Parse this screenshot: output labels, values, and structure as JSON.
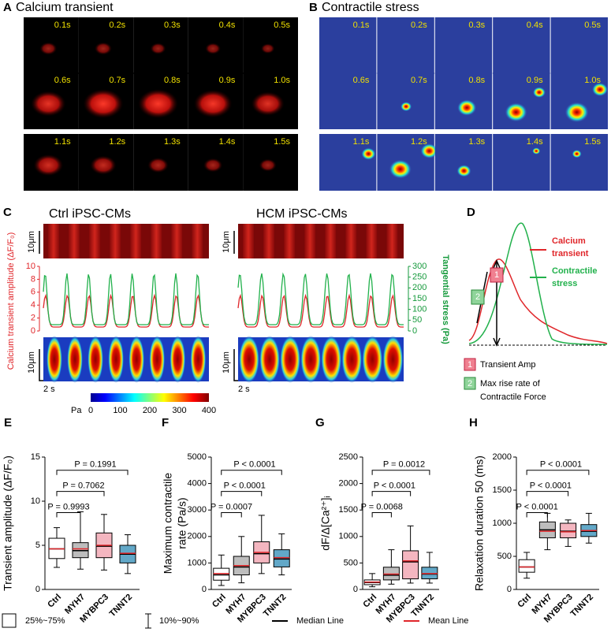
{
  "panel_a": {
    "letter": "A",
    "title": "Calcium transient",
    "times": [
      "0.1s",
      "0.2s",
      "0.3s",
      "0.4s",
      "0.5s",
      "0.6s",
      "0.7s",
      "0.8s",
      "0.9s",
      "1.0s",
      "1.1s",
      "1.2s",
      "1.3s",
      "1.4s",
      "1.5s"
    ]
  },
  "panel_b": {
    "letter": "B",
    "title": "Contractile stress",
    "times": [
      "0.1s",
      "0.2s",
      "0.3s",
      "0.4s",
      "0.5s",
      "0.6s",
      "0.7s",
      "0.8s",
      "0.9s",
      "1.0s",
      "1.1s",
      "1.2s",
      "1.3s",
      "1.4s",
      "1.5s"
    ]
  },
  "panel_c": {
    "letter": "C",
    "ctrl_title": "Ctrl iPSC-CMs",
    "hcm_title": "HCM iPSC-CMs",
    "scale_bar": "10μm",
    "time_bar": "2 s",
    "left_axis_label": "Calcium transient amplitude (ΔF/F₀)",
    "left_ticks": [
      0,
      2,
      4,
      6,
      8,
      10
    ],
    "right_axis_label": "Tangential stress (Pa)",
    "right_ticks": [
      0,
      50,
      100,
      150,
      200,
      250,
      300
    ],
    "colorbar_unit": "Pa",
    "colorbar_ticks": [
      0,
      100,
      200,
      300,
      400
    ]
  },
  "panel_d": {
    "letter": "D",
    "calcium_label": [
      "Calcium",
      "transient"
    ],
    "stress_label": [
      "Contractile",
      "stress"
    ],
    "marker_1": "1",
    "marker_2": "2",
    "legend_1": "Transient Amp",
    "legend_2": [
      "Max rise rate of",
      "Contractile Force"
    ]
  },
  "chart_data": [
    {
      "type": "box",
      "letter": "E",
      "y_label": "Transient amplitude (ΔF/F₀)",
      "categories": [
        "Ctrl",
        "MYH7",
        "MYBPC3",
        "TNNT2"
      ],
      "ylim": [
        0,
        15
      ],
      "yticks": [
        0,
        5,
        10,
        15
      ],
      "boxes": [
        {
          "whislo": 2.5,
          "q1": 3.5,
          "median": 4.6,
          "mean": 4.6,
          "q3": 5.8,
          "whishi": 7.0,
          "color": "#ffffff"
        },
        {
          "whislo": 2.3,
          "q1": 3.6,
          "median": 4.4,
          "mean": 4.6,
          "q3": 5.3,
          "whishi": 8.8,
          "color": "#bdbdbd"
        },
        {
          "whislo": 2.2,
          "q1": 3.6,
          "median": 4.9,
          "mean": 5.0,
          "q3": 6.4,
          "whishi": 8.5,
          "color": "#f4b6c0"
        },
        {
          "whislo": 1.8,
          "q1": 3.0,
          "median": 4.0,
          "mean": 4.1,
          "q3": 5.0,
          "whishi": 6.2,
          "color": "#62a8c8"
        }
      ],
      "p_values": [
        "P = 0.9993",
        "P = 0.7062",
        "P = 0.1991"
      ]
    },
    {
      "type": "box",
      "letter": "F",
      "y_label": [
        "Maximum contractile",
        "rate (Pa/s)"
      ],
      "categories": [
        "Ctrl",
        "MYH7",
        "MYBPC3",
        "TNNT2"
      ],
      "ylim": [
        0,
        5000
      ],
      "yticks": [
        0,
        1000,
        2000,
        3000,
        4000,
        5000
      ],
      "boxes": [
        {
          "whislo": 150,
          "q1": 350,
          "median": 550,
          "mean": 600,
          "q3": 800,
          "whishi": 1300,
          "color": "#ffffff"
        },
        {
          "whislo": 250,
          "q1": 550,
          "median": 850,
          "mean": 900,
          "q3": 1250,
          "whishi": 2000,
          "color": "#bdbdbd"
        },
        {
          "whislo": 600,
          "q1": 1000,
          "median": 1350,
          "mean": 1400,
          "q3": 1800,
          "whishi": 2800,
          "color": "#f4b6c0"
        },
        {
          "whislo": 550,
          "q1": 850,
          "median": 1150,
          "mean": 1200,
          "q3": 1500,
          "whishi": 2100,
          "color": "#62a8c8"
        }
      ],
      "p_values": [
        "P = 0.0007",
        "P < 0.0001",
        "P < 0.0001"
      ]
    },
    {
      "type": "box",
      "letter": "G",
      "y_label": "dF/Δ[Ca²⁺]ᵢ",
      "categories": [
        "Ctrl",
        "MYH7",
        "MYBPC3",
        "TNNT2"
      ],
      "ylim": [
        0,
        2500
      ],
      "yticks": [
        0,
        500,
        1000,
        1500,
        2000,
        2500
      ],
      "boxes": [
        {
          "whislo": 50,
          "q1": 90,
          "median": 130,
          "mean": 140,
          "q3": 180,
          "whishi": 300,
          "color": "#ffffff"
        },
        {
          "whislo": 100,
          "q1": 180,
          "median": 270,
          "mean": 290,
          "q3": 420,
          "whishi": 750,
          "color": "#bdbdbd"
        },
        {
          "whislo": 120,
          "q1": 200,
          "median": 520,
          "mean": 540,
          "q3": 730,
          "whishi": 1200,
          "color": "#f4b6c0"
        },
        {
          "whislo": 120,
          "q1": 200,
          "median": 290,
          "mean": 300,
          "q3": 420,
          "whishi": 700,
          "color": "#62a8c8"
        }
      ],
      "p_values": [
        "P = 0.0068",
        "P < 0.0001",
        "P = 0.0012"
      ]
    },
    {
      "type": "box",
      "letter": "H",
      "y_label": "Relaxation duration 50 (ms)",
      "categories": [
        "Ctrl",
        "MYH7",
        "MYBPC3",
        "TNNT2"
      ],
      "ylim": [
        0,
        2000
      ],
      "yticks": [
        0,
        500,
        1000,
        1500,
        2000
      ],
      "boxes": [
        {
          "whislo": 170,
          "q1": 260,
          "median": 340,
          "mean": 340,
          "q3": 450,
          "whishi": 560,
          "color": "#ffffff"
        },
        {
          "whislo": 600,
          "q1": 780,
          "median": 900,
          "mean": 880,
          "q3": 1020,
          "whishi": 1150,
          "color": "#bdbdbd"
        },
        {
          "whislo": 650,
          "q1": 780,
          "median": 880,
          "mean": 870,
          "q3": 1000,
          "whishi": 1050,
          "color": "#f4b6c0"
        },
        {
          "whislo": 700,
          "q1": 800,
          "median": 880,
          "mean": 890,
          "q3": 980,
          "whishi": 1150,
          "color": "#62a8c8"
        }
      ],
      "p_values": [
        "P < 0.0001",
        "P < 0.0001",
        "P < 0.0001"
      ]
    }
  ],
  "legend": {
    "box": "25%~75%",
    "whisker": "10%~90%",
    "median": "Median Line",
    "mean": "Mean Line"
  }
}
